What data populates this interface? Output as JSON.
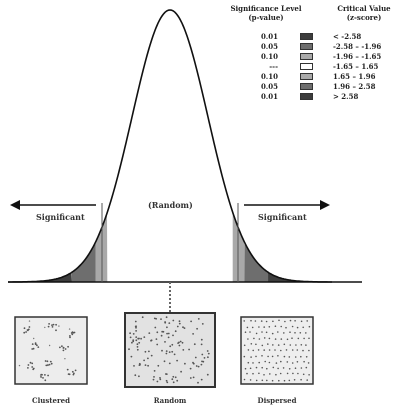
{
  "legend": {
    "header_p_line1": "Significance Level",
    "header_p_line2": "(p-value)",
    "header_z_line1": "Critical Value",
    "header_z_line2": "(z-score)",
    "rows": [
      {
        "p": "0.01",
        "z": "< -2.58",
        "color": "#3d3d3d"
      },
      {
        "p": "0.05",
        "z": "-2.58 – -1.96",
        "color": "#6e6e6e"
      },
      {
        "p": "0.10",
        "z": "-1.96 – -1.65",
        "color": "#a9a9a9"
      },
      {
        "p": "---",
        "z": "-1.65 – 1.65",
        "color": "#ffffff"
      },
      {
        "p": "0.10",
        "z": "1.65 – 1.96",
        "color": "#a9a9a9"
      },
      {
        "p": "0.05",
        "z": "1.96 – 2.58",
        "color": "#6e6e6e"
      },
      {
        "p": "0.01",
        "z": "> 2.58",
        "color": "#3d3d3d"
      }
    ]
  },
  "labels": {
    "left_significant": "Significant",
    "right_significant": "Significant",
    "center": "(Random)"
  },
  "patterns": [
    {
      "label": "Clustered"
    },
    {
      "label": "Random"
    },
    {
      "label": "Dispersed"
    }
  ]
}
